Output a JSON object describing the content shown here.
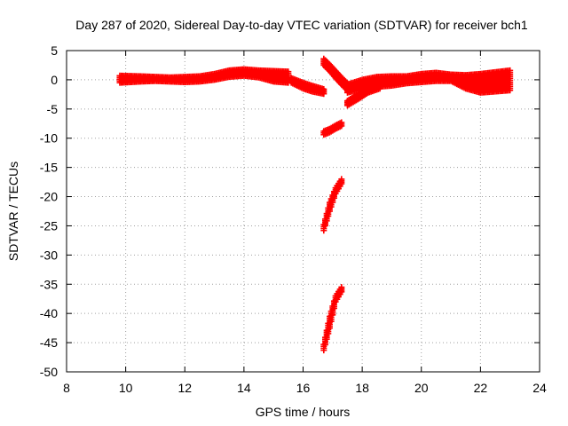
{
  "chart_data": {
    "type": "scatter",
    "title": "Day 287 of 2020, Sidereal Day-to-day VTEC variation (SDTVAR) for receiver bch1",
    "xlabel": "GPS time / hours",
    "ylabel": "SDTVAR / TECUs",
    "xlim": [
      8,
      24
    ],
    "ylim": [
      -50,
      5
    ],
    "xticks": [
      "8",
      "10",
      "12",
      "14",
      "16",
      "18",
      "20",
      "22",
      "24"
    ],
    "yticks": [
      "5",
      "0",
      "-5",
      "-10",
      "-15",
      "-20",
      "-25",
      "-30",
      "-35",
      "-40",
      "-45",
      "-50"
    ],
    "grid": true,
    "marker": "plus",
    "color": "#ff0000",
    "series": [
      {
        "name": "bands",
        "band_points": [
          {
            "x": 9.8,
            "lo": -0.5,
            "hi": 0.7
          },
          {
            "x": 10.5,
            "lo": -0.3,
            "hi": 0.6
          },
          {
            "x": 11.0,
            "lo": -0.2,
            "hi": 0.5
          },
          {
            "x": 11.5,
            "lo": -0.3,
            "hi": 0.4
          },
          {
            "x": 12.0,
            "lo": -0.4,
            "hi": 0.5
          },
          {
            "x": 12.5,
            "lo": -0.3,
            "hi": 0.6
          },
          {
            "x": 13.0,
            "lo": 0.0,
            "hi": 1.0
          },
          {
            "x": 13.5,
            "lo": 0.5,
            "hi": 1.6
          },
          {
            "x": 14.0,
            "lo": 0.7,
            "hi": 1.8
          },
          {
            "x": 14.5,
            "lo": 0.4,
            "hi": 1.6
          },
          {
            "x": 15.0,
            "lo": -0.3,
            "hi": 1.5
          },
          {
            "x": 15.5,
            "lo": -0.5,
            "hi": 1.4
          }
        ]
      },
      {
        "name": "bands",
        "band_points": [
          {
            "x": 15.6,
            "lo": -0.5,
            "hi": 0.3
          },
          {
            "x": 16.0,
            "lo": -1.5,
            "hi": -0.5
          },
          {
            "x": 16.3,
            "lo": -2.0,
            "hi": -1.0
          },
          {
            "x": 16.7,
            "lo": -2.4,
            "hi": -1.6
          }
        ]
      },
      {
        "name": "bands",
        "band_points": [
          {
            "x": 16.7,
            "lo": 2.5,
            "hi": 3.6
          },
          {
            "x": 16.9,
            "lo": 1.5,
            "hi": 2.6
          },
          {
            "x": 17.1,
            "lo": 0.3,
            "hi": 1.5
          },
          {
            "x": 17.3,
            "lo": -0.8,
            "hi": 0.4
          },
          {
            "x": 17.5,
            "lo": -1.8,
            "hi": -0.6
          }
        ]
      },
      {
        "name": "bands",
        "band_points": [
          {
            "x": 17.5,
            "lo": -4.4,
            "hi": -3.6
          },
          {
            "x": 17.9,
            "lo": -3.2,
            "hi": -2.3
          },
          {
            "x": 18.2,
            "lo": -2.2,
            "hi": -1.2
          },
          {
            "x": 18.6,
            "lo": -1.5,
            "hi": -0.3
          }
        ]
      },
      {
        "name": "bands",
        "band_points": [
          {
            "x": 17.5,
            "lo": -2.2,
            "hi": -0.8
          },
          {
            "x": 18.0,
            "lo": -1.5,
            "hi": 0.0
          },
          {
            "x": 18.5,
            "lo": -1.2,
            "hi": 0.5
          },
          {
            "x": 19.0,
            "lo": -1.0,
            "hi": 0.6
          },
          {
            "x": 19.5,
            "lo": -0.6,
            "hi": 0.6
          },
          {
            "x": 20.0,
            "lo": -0.4,
            "hi": 1.0
          },
          {
            "x": 20.5,
            "lo": -0.2,
            "hi": 1.2
          },
          {
            "x": 21.0,
            "lo": -0.2,
            "hi": 0.9
          },
          {
            "x": 21.5,
            "lo": -1.5,
            "hi": 0.8
          },
          {
            "x": 22.0,
            "lo": -2.2,
            "hi": 1.0
          },
          {
            "x": 22.5,
            "lo": -2.0,
            "hi": 1.3
          },
          {
            "x": 23.0,
            "lo": -1.8,
            "hi": 1.6
          }
        ]
      },
      {
        "name": "bands",
        "band_points": [
          {
            "x": 16.7,
            "lo": -9.4,
            "hi": -8.8
          },
          {
            "x": 16.9,
            "lo": -9.0,
            "hi": -8.4
          },
          {
            "x": 17.1,
            "lo": -8.4,
            "hi": -7.8
          },
          {
            "x": 17.3,
            "lo": -7.9,
            "hi": -7.3
          }
        ]
      },
      {
        "name": "bands",
        "band_points": [
          {
            "x": 16.7,
            "lo": -25.8,
            "hi": -24.8
          },
          {
            "x": 16.9,
            "lo": -22.5,
            "hi": -21.0
          },
          {
            "x": 17.1,
            "lo": -19.5,
            "hi": -18.5
          },
          {
            "x": 17.3,
            "lo": -17.8,
            "hi": -17.0
          }
        ]
      },
      {
        "name": "bands",
        "band_points": [
          {
            "x": 16.7,
            "lo": -46.3,
            "hi": -45.3
          },
          {
            "x": 16.9,
            "lo": -42.5,
            "hi": -40.5
          },
          {
            "x": 17.1,
            "lo": -38.0,
            "hi": -37.0
          },
          {
            "x": 17.3,
            "lo": -36.3,
            "hi": -35.5
          }
        ]
      }
    ]
  }
}
